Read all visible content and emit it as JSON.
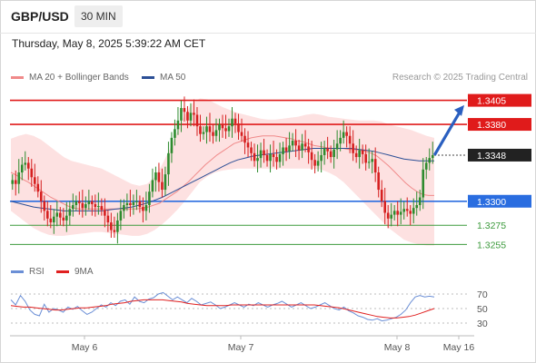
{
  "header": {
    "symbol": "GBP/USD",
    "timeframe": "30 MIN",
    "datetime": "Thursday, May 8, 2025 5:39:22 AM CET"
  },
  "legend": {
    "ma20": {
      "label": "MA 20 + Bollinger Bands",
      "color": "#f08a8a"
    },
    "ma50": {
      "label": "MA 50",
      "color": "#2c4f96"
    },
    "credit": "Research © 2025 Trading Central"
  },
  "rsi_legend": {
    "rsi": {
      "label": "RSI",
      "color": "#6b8fd6"
    },
    "ma": {
      "label": "9MA",
      "color": "#e02020"
    }
  },
  "chart_data": [
    {
      "type": "candlestick",
      "title": "GBP/USD 30 MIN",
      "ylim": [
        1.3245,
        1.3415
      ],
      "price_levels": [
        {
          "label": "1.3405",
          "value": 1.3405,
          "kind": "resistance",
          "color": "#e01b1b"
        },
        {
          "label": "1.3380",
          "value": 1.338,
          "kind": "resistance",
          "color": "#e01b1b"
        },
        {
          "label": "1.3348",
          "value": 1.3348,
          "kind": "last",
          "color": "#222222"
        },
        {
          "label": "1.3300",
          "value": 1.33,
          "kind": "pivot",
          "color": "#2a6de0"
        },
        {
          "label": "1.3275",
          "value": 1.3275,
          "kind": "support",
          "color": "#3c9a3c"
        },
        {
          "label": "1.3255",
          "value": 1.3255,
          "kind": "support",
          "color": "#3c9a3c"
        }
      ],
      "x_tick_labels": [
        "May 6",
        "May 7",
        "May 8",
        "May 16"
      ],
      "close": [
        1.3322,
        1.3318,
        1.333,
        1.3338,
        1.334,
        1.3334,
        1.3325,
        1.3318,
        1.331,
        1.33,
        1.329,
        1.3282,
        1.3278,
        1.3284,
        1.3288,
        1.3283,
        1.328,
        1.3285,
        1.3292,
        1.3296,
        1.33,
        1.3298,
        1.3293,
        1.3297,
        1.33,
        1.3297,
        1.3294,
        1.3295,
        1.3291,
        1.3285,
        1.3278,
        1.327,
        1.3268,
        1.328,
        1.329,
        1.3296,
        1.3298,
        1.3296,
        1.3299,
        1.33,
        1.3294,
        1.329,
        1.3296,
        1.331,
        1.3322,
        1.333,
        1.332,
        1.3312,
        1.3328,
        1.335,
        1.3366,
        1.3375,
        1.3384,
        1.3397,
        1.3393,
        1.3384,
        1.3392,
        1.339,
        1.3378,
        1.337,
        1.3372,
        1.3378,
        1.3372,
        1.3368,
        1.3374,
        1.338,
        1.3376,
        1.3373,
        1.3378,
        1.3386,
        1.3381,
        1.3372,
        1.3368,
        1.3361,
        1.3356,
        1.335,
        1.3342,
        1.3345,
        1.3353,
        1.3348,
        1.3342,
        1.3349,
        1.3346,
        1.3341,
        1.3349,
        1.3356,
        1.3352,
        1.3358,
        1.3363,
        1.3358,
        1.3353,
        1.336,
        1.3357,
        1.3351,
        1.3343,
        1.3337,
        1.3342,
        1.3348,
        1.3355,
        1.3352,
        1.3346,
        1.3354,
        1.336,
        1.3366,
        1.3372,
        1.3368,
        1.336,
        1.335,
        1.3346,
        1.3353,
        1.3349,
        1.334,
        1.3341,
        1.3344,
        1.333,
        1.3312,
        1.33,
        1.3288,
        1.3282,
        1.3286,
        1.329,
        1.3286,
        1.3289,
        1.3292,
        1.329,
        1.3287,
        1.3293,
        1.3296,
        1.3304,
        1.3333,
        1.334,
        1.3345,
        1.3348
      ],
      "ma20": [
        1.333,
        1.3327,
        1.3323,
        1.332,
        1.3316,
        1.3312,
        1.3308,
        1.3304,
        1.3301,
        1.3298,
        1.3295,
        1.3293,
        1.3292,
        1.3292,
        1.3292,
        1.3292,
        1.3292,
        1.3292,
        1.3292,
        1.3292,
        1.3292,
        1.3292,
        1.3292,
        1.3293,
        1.3294,
        1.3296,
        1.3298,
        1.3302,
        1.3306,
        1.331,
        1.3315,
        1.332,
        1.3326,
        1.3332,
        1.3338,
        1.3343,
        1.3348,
        1.3352,
        1.3356,
        1.336,
        1.3362,
        1.3364,
        1.3366,
        1.3367,
        1.3368,
        1.3368,
        1.3368,
        1.3367,
        1.3366,
        1.3365,
        1.3363,
        1.3362,
        1.336,
        1.3358,
        1.3357,
        1.3356,
        1.3355,
        1.3355,
        1.3355,
        1.3354,
        1.3354,
        1.3353,
        1.3352,
        1.335,
        1.3347,
        1.3342,
        1.3337,
        1.3331,
        1.3325,
        1.3319,
        1.3314,
        1.331,
        1.3307,
        1.3306,
        1.3306
      ],
      "ma50": [
        1.33,
        1.3298,
        1.3296,
        1.3294,
        1.3293,
        1.3292,
        1.3291,
        1.329,
        1.329,
        1.329,
        1.329,
        1.329,
        1.329,
        1.3291,
        1.3292,
        1.3293,
        1.3294,
        1.3296,
        1.3298,
        1.3301,
        1.3304,
        1.3308,
        1.3312,
        1.3316,
        1.332,
        1.3324,
        1.3328,
        1.3332,
        1.3336,
        1.334,
        1.3343,
        1.3345,
        1.3347,
        1.3348,
        1.3349,
        1.335,
        1.3351,
        1.3352,
        1.3353,
        1.3354,
        1.3355,
        1.3355,
        1.3355,
        1.3355,
        1.3355,
        1.3355,
        1.3354,
        1.3353,
        1.3352,
        1.335,
        1.3348,
        1.3346,
        1.3344,
        1.3343,
        1.3342,
        1.3342,
        1.3342
      ],
      "bb_upper": [
        1.3365,
        1.3368,
        1.337,
        1.3368,
        1.3364,
        1.3358,
        1.3352,
        1.3346,
        1.3342,
        1.334,
        1.3338,
        1.3336,
        1.3334,
        1.333,
        1.3326,
        1.3322,
        1.3318,
        1.3316,
        1.3318,
        1.3325,
        1.3338,
        1.3354,
        1.3372,
        1.339,
        1.3402,
        1.3407,
        1.3406,
        1.3402,
        1.3398,
        1.3395,
        1.3392,
        1.339,
        1.3388,
        1.3386,
        1.3385,
        1.3385,
        1.3386,
        1.3387,
        1.3388,
        1.339,
        1.3391,
        1.339,
        1.3388,
        1.3387,
        1.3386,
        1.3385,
        1.3384,
        1.3384,
        1.3384,
        1.3383,
        1.338,
        1.3378,
        1.3376,
        1.3374,
        1.3371,
        1.3368,
        1.3366
      ],
      "bb_lower": [
        1.329,
        1.3284,
        1.3278,
        1.3272,
        1.3268,
        1.3265,
        1.3264,
        1.3264,
        1.3265,
        1.3266,
        1.3267,
        1.3268,
        1.3268,
        1.3267,
        1.3266,
        1.3265,
        1.3264,
        1.3264,
        1.3266,
        1.327,
        1.3276,
        1.3283,
        1.3291,
        1.33,
        1.331,
        1.332,
        1.3326,
        1.333,
        1.3332,
        1.3333,
        1.3334,
        1.3334,
        1.3334,
        1.3334,
        1.3334,
        1.3334,
        1.3334,
        1.3334,
        1.3334,
        1.3334,
        1.3334,
        1.3333,
        1.333,
        1.3326,
        1.332,
        1.3312,
        1.3304,
        1.3296,
        1.3288,
        1.328,
        1.3272,
        1.3266,
        1.326,
        1.3257,
        1.3255,
        1.3254,
        1.3254
      ],
      "projection": {
        "from": 1.3348,
        "to": 1.34,
        "direction": "up"
      }
    },
    {
      "type": "line",
      "title": "RSI",
      "ylim": [
        20,
        80
      ],
      "y_ticks": [
        70,
        50,
        30
      ],
      "series": [
        {
          "name": "RSI",
          "values": [
            62,
            55,
            68,
            60,
            48,
            42,
            40,
            56,
            45,
            50,
            48,
            45,
            52,
            49,
            53,
            47,
            42,
            45,
            50,
            55,
            52,
            58,
            54,
            60,
            62,
            56,
            66,
            60,
            58,
            63,
            65,
            70,
            72,
            67,
            62,
            66,
            62,
            58,
            64,
            60,
            55,
            57,
            59,
            55,
            50,
            52,
            55,
            58,
            55,
            52,
            56,
            54,
            58,
            55,
            52,
            55,
            57,
            60,
            56,
            52,
            55,
            58,
            54,
            50,
            52,
            55,
            58,
            54,
            50,
            48,
            52,
            47,
            44,
            40,
            38,
            35,
            34,
            36,
            33,
            34,
            36,
            38,
            42,
            48,
            58,
            66,
            68,
            66,
            67,
            66
          ]
        },
        {
          "name": "9MA",
          "values": [
            54,
            53,
            52,
            52,
            51,
            50,
            49,
            48,
            48,
            49,
            50,
            51,
            51,
            52,
            53,
            54,
            56,
            57,
            58,
            60,
            61,
            62,
            62,
            62,
            62,
            61,
            60,
            59,
            57,
            56,
            55,
            54,
            54,
            54,
            54,
            55,
            55,
            55,
            55,
            55,
            55,
            55,
            55,
            55,
            55,
            55,
            55,
            55,
            55,
            54,
            53,
            52,
            51,
            49,
            47,
            45,
            43,
            41,
            39,
            38,
            37,
            37,
            38,
            39,
            41,
            44,
            47,
            50
          ]
        }
      ]
    }
  ]
}
